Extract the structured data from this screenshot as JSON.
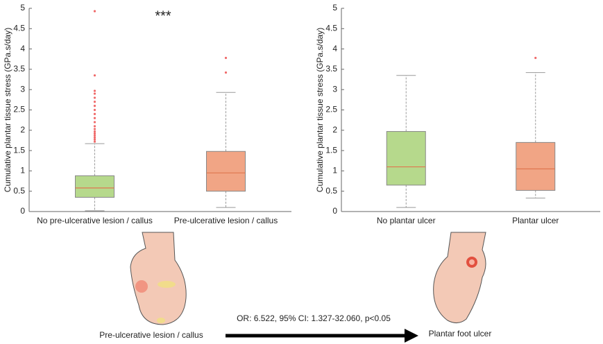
{
  "chart_data": [
    {
      "type": "box",
      "ylabel": "Cumulative plantar tissue stress (GPa.s/day)",
      "annotation": "***",
      "categories": [
        "No pre-ulcerative lesion / callus",
        "Pre-ulcerative lesion / callus"
      ],
      "ylim": [
        0,
        5
      ],
      "yticks": [
        0,
        0.5,
        1,
        1.5,
        2,
        2.5,
        3,
        3.5,
        4,
        4.5,
        5
      ],
      "boxes": [
        {
          "min": 0.02,
          "q1": 0.35,
          "median": 0.58,
          "q3": 0.88,
          "max": 1.67,
          "color": "#b6d98c",
          "outliers": [
            1.72,
            1.77,
            1.82,
            1.87,
            1.92,
            1.97,
            2.03,
            2.1,
            2.2,
            2.3,
            2.4,
            2.5,
            2.6,
            2.7,
            2.8,
            2.9,
            2.97,
            3.35,
            4.93
          ]
        },
        {
          "min": 0.1,
          "q1": 0.5,
          "median": 0.95,
          "q3": 1.48,
          "max": 2.93,
          "color": "#f1a585",
          "outliers": [
            3.42,
            3.78
          ]
        }
      ]
    },
    {
      "type": "box",
      "ylabel": "Cumulative plantar tissue stress (GPa.s/day)",
      "categories": [
        "No plantar ulcer",
        "Plantar ulcer"
      ],
      "ylim": [
        0,
        5
      ],
      "yticks": [
        0,
        0.5,
        1,
        1.5,
        2,
        2.5,
        3,
        3.5,
        4,
        4.5,
        5
      ],
      "boxes": [
        {
          "min": 0.1,
          "q1": 0.65,
          "median": 1.1,
          "q3": 1.97,
          "max": 3.35,
          "color": "#b6d98c",
          "outliers": []
        },
        {
          "min": 0.33,
          "q1": 0.52,
          "median": 1.05,
          "q3": 1.7,
          "max": 3.42,
          "color": "#f1a585",
          "outliers": [
            3.78
          ]
        }
      ]
    }
  ],
  "figure": {
    "left_caption": "Pre-ulcerative lesion / callus",
    "arrow_label": "OR: 6.522, 95% CI: 1.327-32.060, p<0.05",
    "right_caption": "Plantar foot ulcer"
  }
}
